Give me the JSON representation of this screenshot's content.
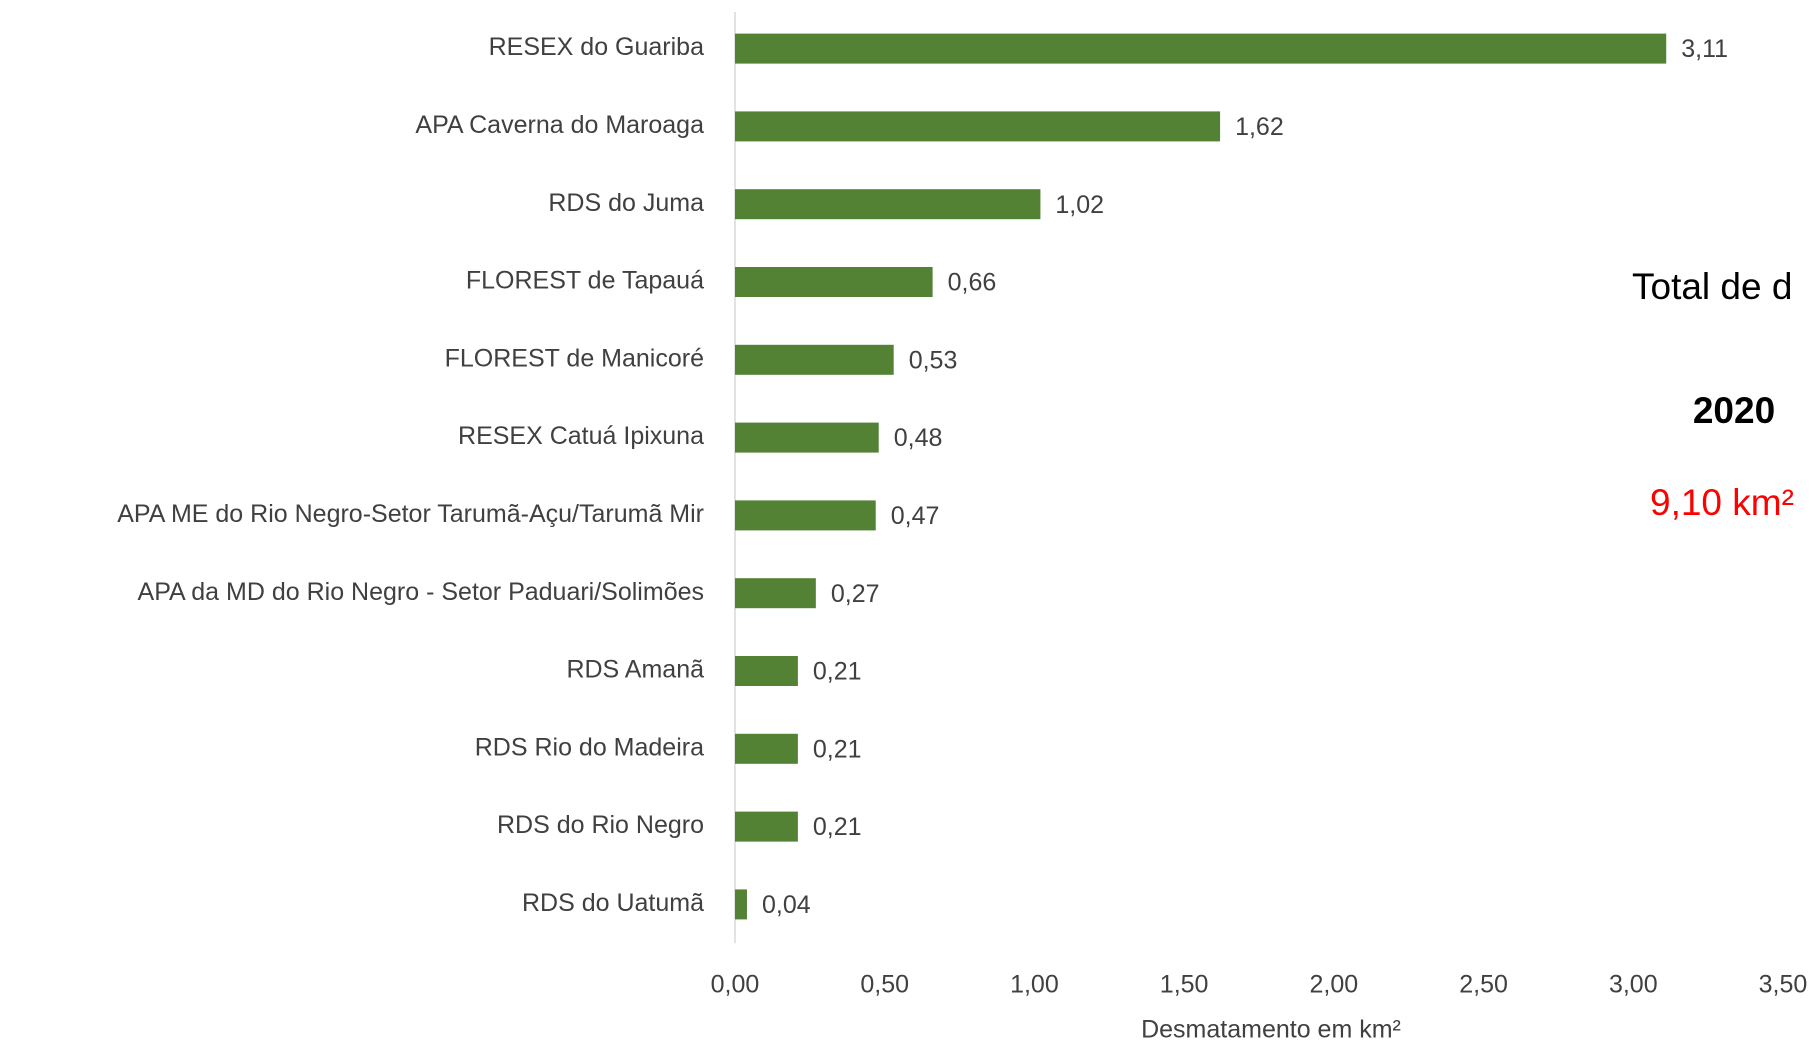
{
  "chart_data": {
    "type": "bar",
    "orientation": "horizontal",
    "categories": [
      "RESEX do Guariba",
      "APA Caverna do Maroaga",
      "RDS do Juma",
      "FLOREST de Tapauá",
      "FLOREST de Manicoré",
      "RESEX Catuá Ipixuna",
      "APA ME do Rio Negro-Setor Tarumã-Açu/Tarumã Mir",
      "APA  da MD do Rio Negro - Setor Paduari/Solimões",
      "RDS Amanã",
      "RDS Rio do Madeira",
      "RDS do Rio Negro",
      "RDS do Uatumã"
    ],
    "values": [
      3.11,
      1.62,
      1.02,
      0.66,
      0.53,
      0.48,
      0.47,
      0.27,
      0.21,
      0.21,
      0.21,
      0.04
    ],
    "value_labels": [
      "3,11",
      "1,62",
      "1,02",
      "0,66",
      "0,53",
      "0,48",
      "0,47",
      "0,27",
      "0,21",
      "0,21",
      "0,21",
      "0,04"
    ],
    "color": "#548235",
    "xlabel": "Desmatamento em km²",
    "xlim": [
      0,
      3.5
    ],
    "xticks": [
      {
        "value": 0,
        "label": "0,00"
      },
      {
        "value": 0.5,
        "label": "0,50"
      },
      {
        "value": 1,
        "label": "1,00"
      },
      {
        "value": 1.5,
        "label": "1,50"
      },
      {
        "value": 2,
        "label": "2,00"
      },
      {
        "value": 2.5,
        "label": "2,50"
      },
      {
        "value": 3,
        "label": "3,00"
      },
      {
        "value": 3.5,
        "label": "3,50"
      }
    ],
    "grid": false,
    "annotations": [
      "Total de d",
      "2020",
      "9,10 km²"
    ]
  }
}
